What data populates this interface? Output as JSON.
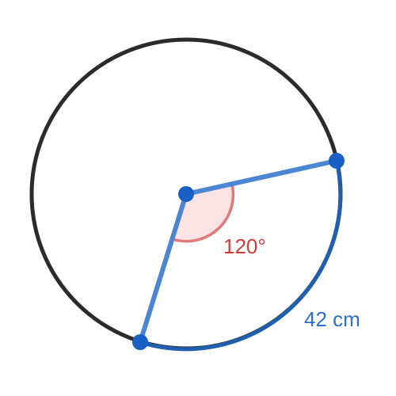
{
  "diagram": {
    "angle_label": "120°",
    "arc_length_label": "42 cm",
    "central_angle_degrees": 120,
    "arc_length_cm": 42,
    "colors": {
      "circle": "#2b2b2b",
      "arc": "#1f5fae",
      "radius": "#4a86d4",
      "point": "#1a5fc4",
      "angle_fill": "#fbe3e3",
      "angle_stroke": "#e07a7a",
      "angle_text": "#d03c3c",
      "arc_text": "#2d6fc9"
    }
  }
}
